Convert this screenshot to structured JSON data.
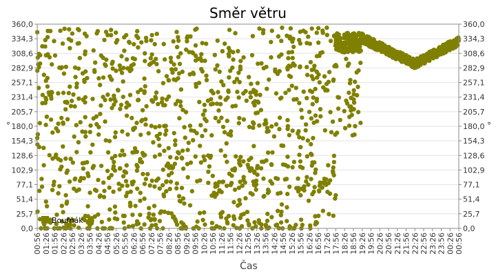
{
  "chart_data": {
    "type": "scatter",
    "title": "Směr větru",
    "xlabel": "Čas",
    "ylabel": "°",
    "ylabel_right": "°",
    "yticks": [
      "0,0",
      "25,7",
      "51,4",
      "77,1",
      "102,9",
      "128,6",
      "154,3",
      "180,0",
      "205,7",
      "231,4",
      "257,1",
      "282,9",
      "308,6",
      "334,3",
      "360,0"
    ],
    "ylim": [
      0,
      360
    ],
    "grid": true,
    "xticks": [
      "00:56",
      "01:26",
      "01:56",
      "02:26",
      "02:56",
      "03:26",
      "03:56",
      "04:26",
      "04:56",
      "05:26",
      "05:56",
      "06:26",
      "06:56",
      "07:26",
      "07:56",
      "08:26",
      "08:56",
      "09:26",
      "09:56",
      "10:26",
      "10:56",
      "11:26",
      "11:56",
      "12:26",
      "12:56",
      "13:26",
      "13:56",
      "14:26",
      "14:56",
      "15:26",
      "15:56",
      "16:26",
      "16:56",
      "17:26",
      "17:56",
      "18:26",
      "18:56",
      "19:26",
      "19:56",
      "20:26",
      "20:56",
      "21:26",
      "21:56",
      "22:26",
      "22:56",
      "23:26",
      "23:56",
      "00:26",
      "00:56"
    ],
    "xlim": [
      "00:56",
      "00:56 (+1 day)"
    ],
    "legend_position": "bottom-left",
    "series": [
      {
        "name": "Bouřňák",
        "color": "#808000",
        "segments": [
          {
            "x_range": [
              "00:56",
              "17:56"
            ],
            "pattern": "scattered",
            "values_clustered_near": [
              0,
              15,
              70,
              90,
              120,
              180,
              230,
              270,
              300,
              340
            ]
          },
          {
            "x_range": [
              "17:56",
              "19:26"
            ],
            "pattern": "mostly 310-345, some scattered 160-300"
          },
          {
            "x_range": [
              "19:26",
              "22:26"
            ],
            "pattern": "decreasing from about 335 to about 290"
          },
          {
            "x_range": [
              "22:26",
              "00:56"
            ],
            "pattern": "increasing from about 290 to about 330"
          }
        ]
      }
    ]
  }
}
